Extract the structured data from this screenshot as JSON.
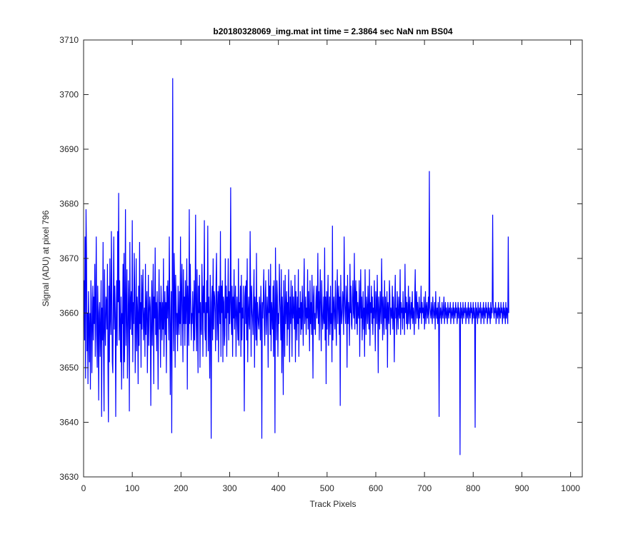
{
  "chart_data": {
    "type": "line",
    "title": "b20180328069_img.mat int time = 2.3864 sec  NaN nm BS04",
    "xlabel": "Track Pixels",
    "ylabel": "Signal (ADU) at pixel 796",
    "xlim": [
      0,
      1024
    ],
    "ylim": [
      3630,
      3710
    ],
    "xticks": [
      0,
      100,
      200,
      300,
      400,
      500,
      600,
      700,
      800,
      900,
      1000
    ],
    "yticks": [
      3630,
      3640,
      3650,
      3660,
      3670,
      3680,
      3690,
      3700,
      3710
    ],
    "grid": false,
    "series_color": "#0000ff",
    "series": [
      {
        "x_start": 1,
        "x_step": 1,
        "values": [
          3666,
          3655,
          3674,
          3648,
          3679,
          3671,
          3653,
          3660,
          3647,
          3664,
          3658,
          3651,
          3660,
          3646,
          3666,
          3662,
          3649,
          3657,
          3665,
          3655,
          3663,
          3658,
          3669,
          3652,
          3661,
          3674,
          3656,
          3650,
          3665,
          3659,
          3644,
          3660,
          3662,
          3652,
          3657,
          3666,
          3641,
          3661,
          3655,
          3673,
          3653,
          3642,
          3668,
          3658,
          3654,
          3663,
          3662,
          3657,
          3669,
          3651,
          3640,
          3665,
          3651,
          3670,
          3659,
          3656,
          3675,
          3663,
          3651,
          3649,
          3662,
          3674,
          3657,
          3665,
          3660,
          3641,
          3659,
          3666,
          3654,
          3675,
          3662,
          3682,
          3655,
          3666,
          3658,
          3651,
          3663,
          3646,
          3660,
          3658,
          3669,
          3648,
          3671,
          3651,
          3661,
          3679,
          3654,
          3660,
          3668,
          3648,
          3655,
          3666,
          3661,
          3642,
          3673,
          3657,
          3662,
          3664,
          3656,
          3677,
          3651,
          3662,
          3658,
          3671,
          3664,
          3649,
          3658,
          3670,
          3653,
          3663,
          3660,
          3647,
          3665,
          3654,
          3673,
          3658,
          3662,
          3650,
          3667,
          3657,
          3663,
          3668,
          3655,
          3659,
          3661,
          3652,
          3669,
          3656,
          3661,
          3664,
          3649,
          3658,
          3667,
          3654,
          3660,
          3663,
          3661,
          3643,
          3658,
          3666,
          3654,
          3661,
          3669,
          3647,
          3663,
          3659,
          3672,
          3656,
          3662,
          3653,
          3664,
          3659,
          3646,
          3660,
          3668,
          3657,
          3662,
          3650,
          3665,
          3661,
          3655,
          3662,
          3657,
          3670,
          3652,
          3660,
          3664,
          3656,
          3662,
          3649,
          3665,
          3659,
          3666,
          3661,
          3655,
          3674,
          3662,
          3645,
          3658,
          3664,
          3638,
          3663,
          3703,
          3659,
          3653,
          3671,
          3665,
          3650,
          3667,
          3662,
          3656,
          3660,
          3653,
          3665,
          3659,
          3656,
          3664,
          3658,
          3674,
          3654,
          3663,
          3669,
          3660,
          3651,
          3668,
          3658,
          3663,
          3654,
          3666,
          3658,
          3662,
          3670,
          3646,
          3665,
          3661,
          3654,
          3679,
          3658,
          3669,
          3663,
          3655,
          3660,
          3658,
          3664,
          3660,
          3653,
          3666,
          3655,
          3662,
          3678,
          3659,
          3653,
          3668,
          3660,
          3649,
          3665,
          3660,
          3667,
          3650,
          3662,
          3658,
          3656,
          3669,
          3663,
          3652,
          3665,
          3660,
          3677,
          3657,
          3655,
          3662,
          3652,
          3666,
          3660,
          3676,
          3653,
          3663,
          3658,
          3648,
          3667,
          3660,
          3637,
          3662,
          3665,
          3655,
          3670,
          3657,
          3664,
          3663,
          3660,
          3653,
          3666,
          3671,
          3655,
          3660,
          3664,
          3651,
          3665,
          3662,
          3658,
          3675,
          3652,
          3665,
          3660,
          3666,
          3651,
          3663,
          3662,
          3654,
          3656,
          3670,
          3659,
          3665,
          3652,
          3663,
          3660,
          3670,
          3655,
          3664,
          3658,
          3662,
          3683,
          3659,
          3656,
          3665,
          3652,
          3663,
          3659,
          3668,
          3657,
          3661,
          3665,
          3652,
          3660,
          3663,
          3658,
          3655,
          3670,
          3654,
          3662,
          3660,
          3665,
          3652,
          3667,
          3655,
          3661,
          3659,
          3665,
          3657,
          3642,
          3663,
          3665,
          3658,
          3666,
          3655,
          3670,
          3651,
          3660,
          3663,
          3658,
          3657,
          3675,
          3664,
          3652,
          3665,
          3661,
          3659,
          3656,
          3663,
          3668,
          3650,
          3663,
          3661,
          3655,
          3671,
          3654,
          3662,
          3660,
          3658,
          3657,
          3663,
          3661,
          3655,
          3665,
          3660,
          3637,
          3662,
          3659,
          3663,
          3668,
          3658,
          3654,
          3663,
          3666,
          3656,
          3659,
          3663,
          3660,
          3650,
          3668,
          3660,
          3665,
          3656,
          3669,
          3653,
          3662,
          3660,
          3657,
          3665,
          3652,
          3666,
          3660,
          3638,
          3672,
          3661,
          3655,
          3666,
          3663,
          3652,
          3660,
          3658,
          3669,
          3663,
          3660,
          3655,
          3668,
          3649,
          3663,
          3659,
          3645,
          3666,
          3660,
          3652,
          3667,
          3658,
          3661,
          3664,
          3654,
          3662,
          3657,
          3668,
          3660,
          3651,
          3663,
          3658,
          3666,
          3660,
          3652,
          3665,
          3659,
          3663,
          3660,
          3657,
          3667,
          3651,
          3664,
          3660,
          3655,
          3663,
          3658,
          3668,
          3652,
          3661,
          3659,
          3664,
          3656,
          3662,
          3657,
          3665,
          3660,
          3654,
          3663,
          3670,
          3658,
          3660,
          3663,
          3656,
          3661,
          3659,
          3668,
          3657,
          3664,
          3660,
          3653,
          3666,
          3658,
          3662,
          3656,
          3667,
          3660,
          3648,
          3663,
          3665,
          3657,
          3660,
          3656,
          3662,
          3665,
          3659,
          3661,
          3671,
          3658,
          3664,
          3655,
          3662,
          3668,
          3660,
          3653,
          3666,
          3661,
          3657,
          3659,
          3663,
          3658,
          3672,
          3655,
          3663,
          3647,
          3664,
          3657,
          3662,
          3667,
          3654,
          3660,
          3663,
          3656,
          3665,
          3658,
          3660,
          3651,
          3676,
          3655,
          3661,
          3663,
          3659,
          3657,
          3666,
          3660,
          3654,
          3663,
          3668,
          3658,
          3662,
          3665,
          3656,
          3663,
          3643,
          3667,
          3661,
          3658,
          3660,
          3664,
          3662,
          3656,
          3674,
          3663,
          3660,
          3658,
          3665,
          3662,
          3650,
          3667,
          3658,
          3662,
          3660,
          3654,
          3669,
          3660,
          3665,
          3658,
          3657,
          3663,
          3666,
          3660,
          3659,
          3671,
          3657,
          3663,
          3666,
          3658,
          3664,
          3656,
          3662,
          3660,
          3659,
          3666,
          3652,
          3661,
          3668,
          3659,
          3663,
          3655,
          3660,
          3664,
          3657,
          3661,
          3652,
          3668,
          3660,
          3656,
          3663,
          3661,
          3658,
          3665,
          3660,
          3657,
          3668,
          3654,
          3662,
          3660,
          3665,
          3658,
          3663,
          3656,
          3661,
          3659,
          3666,
          3660,
          3653,
          3664,
          3662,
          3658,
          3667,
          3661,
          3649,
          3663,
          3660,
          3657,
          3664,
          3661,
          3658,
          3670,
          3662,
          3655,
          3663,
          3660,
          3656,
          3666,
          3659,
          3663,
          3657,
          3660,
          3664,
          3650,
          3662,
          3660,
          3658,
          3666,
          3663,
          3656,
          3661,
          3660,
          3659,
          3665,
          3657,
          3663,
          3660,
          3651,
          3662,
          3667,
          3659,
          3661,
          3656,
          3664,
          3660,
          3657,
          3663,
          3660,
          3659,
          3668,
          3656,
          3662,
          3660,
          3661,
          3657,
          3664,
          3659,
          3661,
          3656,
          3669,
          3660,
          3663,
          3658,
          3662,
          3657,
          3660,
          3665,
          3658,
          3661,
          3663,
          3657,
          3660,
          3662,
          3659,
          3664,
          3658,
          3661,
          3660,
          3656,
          3663,
          3668,
          3658,
          3661,
          3664,
          3659,
          3662,
          3660,
          3657,
          3663,
          3659,
          3661,
          3660,
          3665,
          3658,
          3662,
          3660,
          3661,
          3659,
          3663,
          3657,
          3660,
          3664,
          3658,
          3661,
          3662,
          3659,
          3660,
          3663,
          3658,
          3686,
          3661,
          3660,
          3659,
          3662,
          3660,
          3658,
          3663,
          3661,
          3659,
          3660,
          3662,
          3657,
          3664,
          3660,
          3659,
          3661,
          3658,
          3662,
          3660,
          3641,
          3663,
          3659,
          3661,
          3660,
          3658,
          3662,
          3660,
          3659,
          3661,
          3663,
          3658,
          3660,
          3662,
          3659,
          3661,
          3660,
          3658,
          3662,
          3660,
          3659,
          3661,
          3660,
          3662,
          3658,
          3660,
          3661,
          3659,
          3660,
          3662,
          3658,
          3661,
          3660,
          3659,
          3662,
          3660,
          3661,
          3658,
          3660,
          3662,
          3659,
          3661,
          3660,
          3634,
          3662,
          3659,
          3661,
          3660,
          3658,
          3662,
          3660,
          3659,
          3661,
          3660,
          3662,
          3658,
          3660,
          3661,
          3659,
          3660,
          3662,
          3658,
          3661,
          3660,
          3659,
          3662,
          3660,
          3661,
          3658,
          3660,
          3662,
          3659,
          3661,
          3660,
          3639,
          3662,
          3659,
          3661,
          3660,
          3658,
          3662,
          3660,
          3659,
          3661,
          3660,
          3662,
          3658,
          3660,
          3661,
          3659,
          3660,
          3662,
          3658,
          3661,
          3660,
          3659,
          3662,
          3660,
          3661,
          3658,
          3660,
          3662,
          3659,
          3661,
          3660,
          3658,
          3662,
          3659,
          3661,
          3660,
          3678,
          3662,
          3660,
          3659,
          3661,
          3660,
          3662,
          3658,
          3660,
          3661,
          3659,
          3660,
          3662,
          3658,
          3661,
          3660,
          3659,
          3662,
          3660,
          3661,
          3658,
          3660,
          3662,
          3659,
          3661,
          3660,
          3658,
          3662,
          3659,
          3661,
          3660,
          3658,
          3674,
          3660
        ]
      }
    ]
  }
}
